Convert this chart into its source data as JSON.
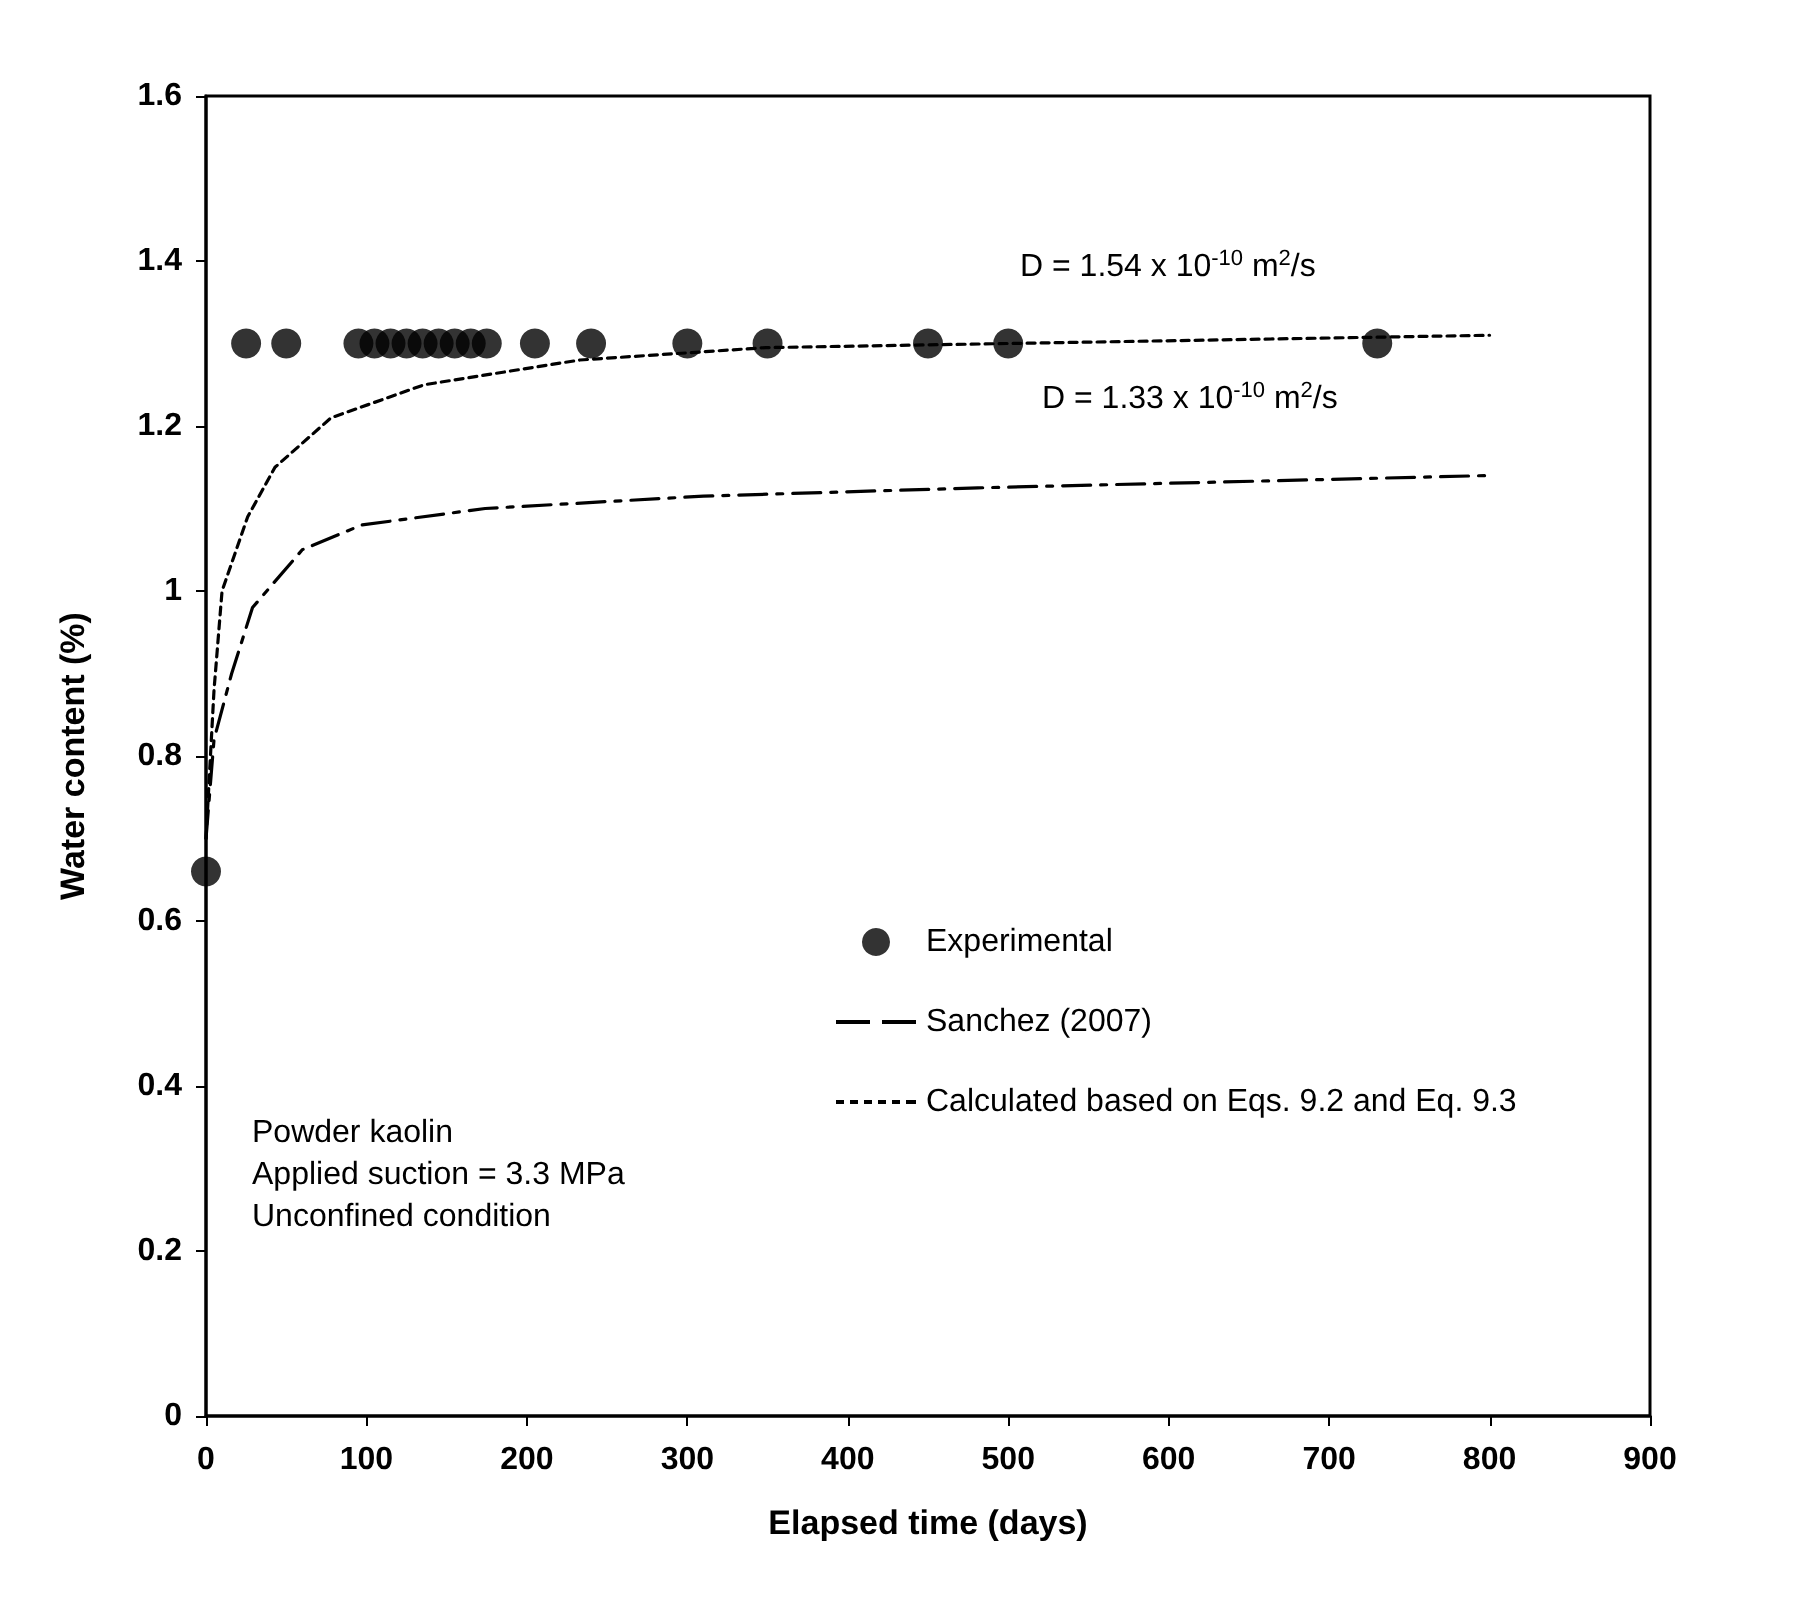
{
  "chart_data": {
    "type": "scatter",
    "xlabel": "Elapsed time (days)",
    "ylabel": "Water content (%)",
    "xlim": [
      0,
      900
    ],
    "xticks": [
      0,
      100,
      200,
      300,
      400,
      500,
      600,
      700,
      800,
      900
    ],
    "ylim": [
      0,
      1.6
    ],
    "yticks": [
      0,
      0.2,
      0.4,
      0.6,
      0.8,
      1,
      1.2,
      1.4,
      1.6
    ],
    "grid": false,
    "legend": "bottom right",
    "series": [
      {
        "name": "Experimental",
        "marker": "circle",
        "color": "#000000",
        "x": [
          0,
          25,
          50,
          95,
          105,
          115,
          125,
          135,
          145,
          155,
          165,
          175,
          205,
          240,
          300,
          350,
          450,
          500,
          730
        ],
        "values": [
          0.66,
          1.3,
          1.3,
          1.3,
          1.3,
          1.3,
          1.3,
          1.3,
          1.3,
          1.3,
          1.3,
          1.3,
          1.3,
          1.3,
          1.3,
          1.3,
          1.3,
          1.3,
          1.3
        ]
      },
      {
        "name": "Sanchez (2007)",
        "type": "line",
        "marker": "none",
        "line_style": "dashed",
        "color": "#000000",
        "x": [
          0,
          5,
          16,
          29,
          60,
          97,
          174,
          310,
          481,
          800
        ],
        "values": [
          0.7,
          0.82,
          0.9,
          0.98,
          1.05,
          1.08,
          1.1,
          1.115,
          1.125,
          1.14
        ]
      },
      {
        "name": "Calculated based on Eqs. 9.2 and Eq. 9.3",
        "type": "line",
        "marker": "none",
        "line_style": "dotted",
        "color": "#000000",
        "x": [
          0,
          5,
          10,
          26,
          43,
          78,
          136,
          233,
          349,
          500,
          800
        ],
        "values": [
          0.7,
          0.88,
          1.0,
          1.09,
          1.15,
          1.21,
          1.25,
          1.28,
          1.295,
          1.3,
          1.31
        ]
      }
    ],
    "annotations": [
      "D = 1.54 x 10$^{-10}$ m$^{2}$/s",
      "D = 1.33 x 10$^{-10}$ m$^{2}$/s",
      "Powder kaolin\nApplied suction = 3.3 MPa\nUnconfined condition"
    ]
  }
}
